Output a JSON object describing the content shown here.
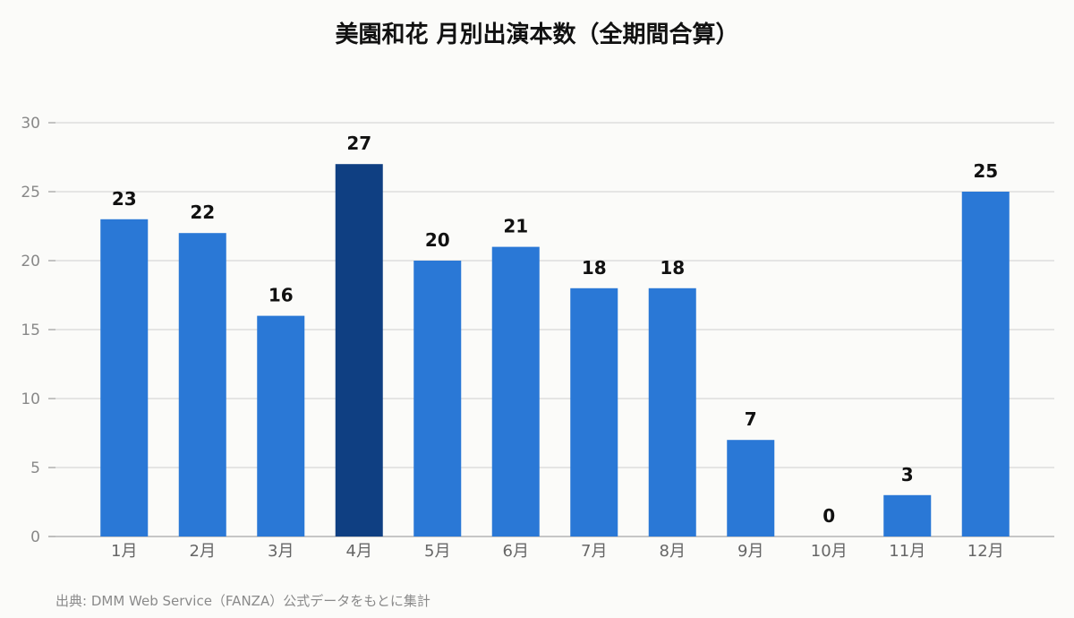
{
  "title": "美園和花 月別出演本数（全期間合算）",
  "source": "出典: DMM Web Service（FANZA）公式データをもとに集計",
  "colors": {
    "bar": "#2a78d6",
    "bar_highlight": "#0f3f82",
    "grid": "#dedede",
    "axis_text": "#888888",
    "label_text": "#111111"
  },
  "chart_data": {
    "type": "bar",
    "title": "美園和花 月別出演本数（全期間合算）",
    "categories": [
      "1月",
      "2月",
      "3月",
      "4月",
      "5月",
      "6月",
      "7月",
      "8月",
      "9月",
      "10月",
      "11月",
      "12月"
    ],
    "values": [
      23,
      22,
      16,
      27,
      20,
      21,
      18,
      18,
      7,
      0,
      3,
      25
    ],
    "highlight_category": "4月",
    "xlabel": "",
    "ylabel": "",
    "ylim": [
      0,
      30
    ],
    "yticks": [
      0,
      5,
      10,
      15,
      20,
      25,
      30
    ],
    "grid": true,
    "data_labels": true,
    "legend": "none"
  }
}
